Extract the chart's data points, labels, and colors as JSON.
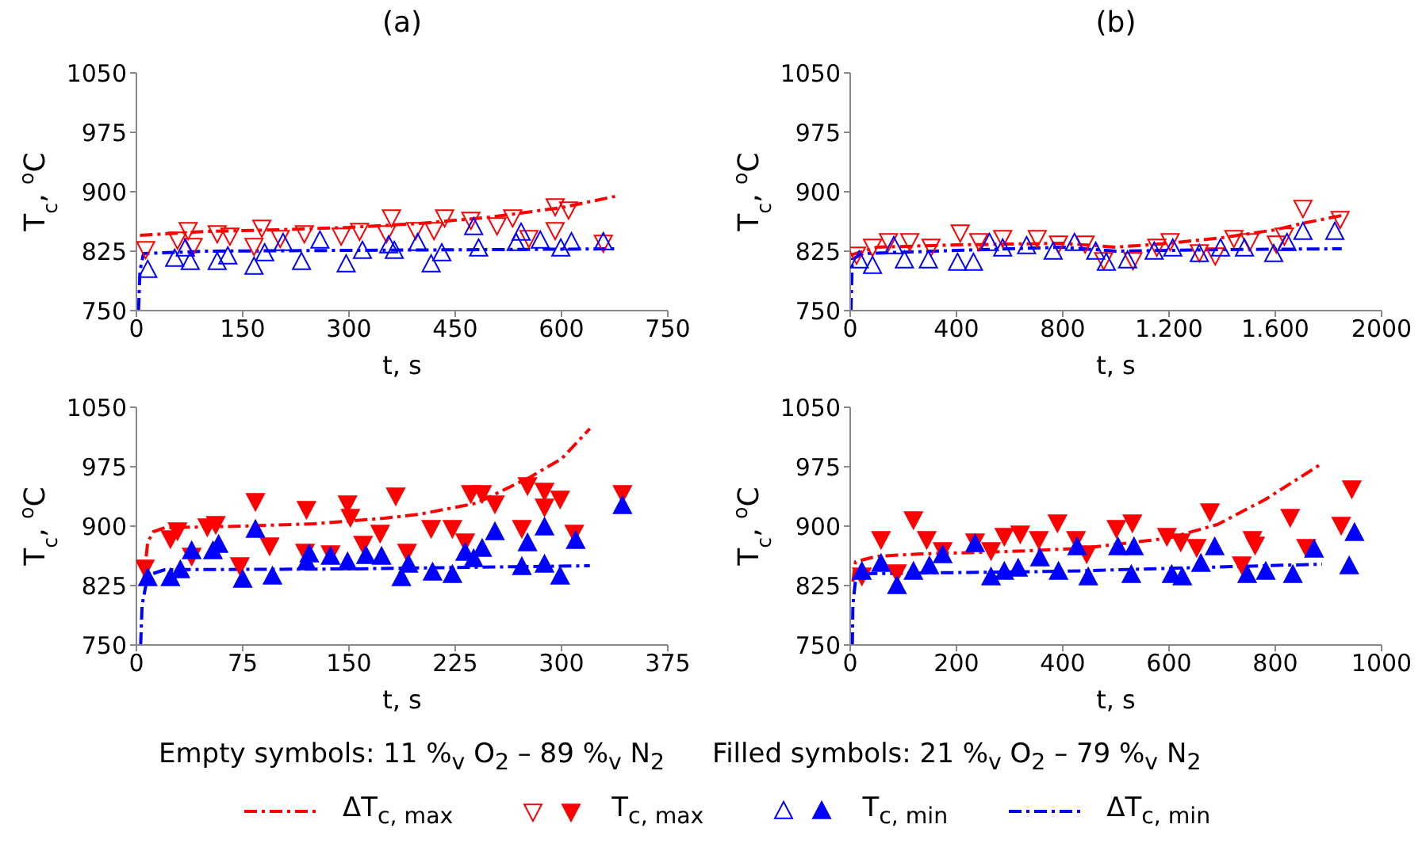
{
  "chart_data": [
    {
      "type": "scatter",
      "title": "(a)",
      "xlabel": "t, s",
      "ylabel": "T$_{c}$, $^{o}$C",
      "xlim": [
        0,
        750
      ],
      "xticks": [
        0,
        150,
        300,
        450,
        600,
        750
      ],
      "ylim": [
        750,
        1050
      ],
      "yticks": [
        750,
        825,
        900,
        975,
        1050
      ],
      "series": [
        {
          "type": "line",
          "line_style": "dashed",
          "color": "#ff0000",
          "x": [
            5,
            100,
            200,
            300,
            400,
            500,
            600,
            680
          ],
          "values": [
            845,
            850,
            852,
            855,
            860,
            868,
            880,
            895
          ]
        },
        {
          "type": "scatter",
          "marker": "triangle",
          "color": "#ff0000",
          "x": [
            13,
            58,
            73,
            80,
            114,
            132,
            166,
            177,
            203,
            237,
            289,
            315,
            353,
            360,
            394,
            420,
            435,
            472,
            509,
            531,
            554,
            591,
            591,
            610,
            659
          ],
          "values": [
            828,
            840,
            852,
            832,
            848,
            845,
            832,
            855,
            842,
            848,
            845,
            851,
            848,
            868,
            852,
            852,
            868,
            865,
            858,
            868,
            842,
            882,
            852,
            878,
            836
          ]
        },
        {
          "type": "scatter",
          "marker": "triangle",
          "color": "#0000ff",
          "x": [
            16,
            54,
            69,
            76,
            114,
            129,
            166,
            181,
            207,
            233,
            259,
            296,
            319,
            356,
            364,
            397,
            416,
            431,
            476,
            483,
            536,
            543,
            570,
            599,
            614,
            659
          ],
          "values": [
            801,
            815,
            828,
            811,
            811,
            818,
            805,
            822,
            835,
            811,
            838,
            808,
            825,
            832,
            825,
            835,
            808,
            822,
            855,
            828,
            835,
            848,
            838,
            828,
            836,
            836
          ]
        },
        {
          "type": "line",
          "line_style": "dashed",
          "color": "#0000ff",
          "x": [
            3,
            5,
            10,
            100,
            300,
            500,
            680
          ],
          "values": [
            750,
            800,
            822,
            825,
            826,
            827,
            828
          ]
        }
      ]
    },
    {
      "type": "scatter",
      "title": "(b)",
      "xlabel": "t, s",
      "ylabel": "T$_{c}$, $^{o}$C",
      "xlim": [
        0,
        2000
      ],
      "xticks": [
        0,
        400,
        800,
        {
          "value": 1200,
          "label": "1.200"
        },
        {
          "value": 1600,
          "label": "1.600"
        },
        2000
      ],
      "ylim": [
        750,
        1050
      ],
      "yticks": [
        750,
        825,
        900,
        975,
        1050
      ],
      "series": [
        {
          "type": "line",
          "line_style": "dashed",
          "color": "#ff0000",
          "x": [
            0,
            100,
            400,
            800,
            1000,
            1200,
            1400,
            1600,
            1700,
            1850
          ],
          "values": [
            820,
            830,
            833,
            835,
            830,
            835,
            842,
            852,
            860,
            870
          ]
        },
        {
          "type": "scatter",
          "marker": "triangle",
          "color": "#ff0000",
          "x": [
            24,
            84,
            144,
            224,
            304,
            414,
            484,
            574,
            704,
            784,
            884,
            954,
            1064,
            1154,
            1204,
            1314,
            1374,
            1444,
            1504,
            1604,
            1634,
            1704,
            1844
          ],
          "values": [
            821,
            831,
            838,
            838,
            831,
            849,
            838,
            842,
            842,
            835,
            835,
            814,
            814,
            831,
            838,
            824,
            820,
            842,
            838,
            835,
            845,
            880,
            866
          ]
        },
        {
          "type": "scatter",
          "marker": "triangle",
          "color": "#0000ff",
          "x": [
            34,
            84,
            164,
            204,
            294,
            404,
            464,
            524,
            574,
            664,
            764,
            844,
            924,
            964,
            1044,
            1144,
            1214,
            1314,
            1394,
            1484,
            1594,
            1644,
            1704,
            1824
          ],
          "values": [
            813,
            806,
            831,
            813,
            813,
            810,
            810,
            835,
            828,
            831,
            824,
            835,
            824,
            810,
            813,
            824,
            828,
            821,
            828,
            828,
            821,
            835,
            849,
            849
          ]
        },
        {
          "type": "line",
          "line_style": "dashed",
          "color": "#0000ff",
          "x": [
            3,
            8,
            50,
            400,
            800,
            1000,
            1400,
            1850
          ],
          "values": [
            750,
            815,
            822,
            826,
            830,
            825,
            827,
            828
          ]
        }
      ]
    },
    {
      "type": "scatter",
      "xlabel": "t, s",
      "ylabel": "T$_{c}$, $^{o}$C",
      "xlim": [
        0,
        375
      ],
      "xticks": [
        0,
        75,
        150,
        225,
        300,
        375
      ],
      "ylim": [
        750,
        1050
      ],
      "yticks": [
        750,
        825,
        900,
        975,
        1050
      ],
      "legend": "bottom",
      "series": [
        {
          "name": "ΔT$_{c, max}$",
          "type": "line",
          "line_style": "dashed",
          "color": "#ff0000",
          "x": [
            5,
            8,
            12,
            20,
            75,
            125,
            175,
            200,
            240,
            278,
            300,
            320
          ],
          "values": [
            830,
            880,
            893,
            898,
            900,
            903,
            910,
            915,
            929,
            962,
            985,
            1023
          ]
        },
        {
          "name": "T$_{c, max}$",
          "type": "scatter",
          "marker": "triangle",
          "color": "#ff0000",
          "x": [
            6,
            24,
            29,
            39,
            50,
            56,
            73,
            84,
            94,
            119,
            120,
            137,
            149,
            151,
            160,
            172,
            183,
            191,
            208,
            223,
            232,
            236,
            244,
            253,
            272,
            276,
            288,
            288,
            299,
            309,
            343
          ],
          "values": [
            848,
            885,
            895,
            863,
            900,
            903,
            851,
            932,
            876,
            868,
            922,
            866,
            929,
            912,
            878,
            892,
            939,
            868,
            898,
            898,
            881,
            942,
            942,
            929,
            898,
            952,
            945,
            925,
            935,
            892,
            942
          ]
        },
        {
          "name": "T$_{c, min}$",
          "type": "scatter",
          "marker": "triangle",
          "color": "#0000ff",
          "x": [
            8,
            24,
            31,
            39,
            54,
            58,
            75,
            84,
            96,
            120,
            122,
            137,
            149,
            162,
            173,
            187,
            192,
            209,
            223,
            232,
            238,
            244,
            253,
            272,
            276,
            288,
            288,
            299,
            310,
            343
          ],
          "values": [
            834,
            834,
            844,
            868,
            868,
            876,
            832,
            895,
            836,
            854,
            864,
            861,
            854,
            862,
            861,
            834,
            851,
            841,
            838,
            866,
            858,
            871,
            892,
            848,
            878,
            898,
            851,
            836,
            881,
            925
          ]
        },
        {
          "name": "ΔT$_{c, min}$",
          "type": "line",
          "line_style": "dashed",
          "color": "#0000ff",
          "x": [
            3,
            4,
            8,
            20,
            150,
            320
          ],
          "values": [
            750,
            800,
            838,
            845,
            846,
            850
          ]
        }
      ]
    },
    {
      "type": "scatter",
      "xlabel": "t, s",
      "ylabel": "T$_{c}$, $^{o}$C",
      "xlim": [
        0,
        1000
      ],
      "xticks": [
        0,
        200,
        400,
        600,
        800,
        1000
      ],
      "ylim": [
        750,
        1050
      ],
      "yticks": [
        750,
        825,
        900,
        975,
        1050
      ],
      "series": [
        {
          "type": "line",
          "line_style": "dashed",
          "color": "#ff0000",
          "x": [
            5,
            10,
            50,
            134,
            300,
            438,
            600,
            691,
            782,
            883
          ],
          "values": [
            830,
            855,
            862,
            865,
            868,
            872,
            885,
            902,
            934,
            977
          ]
        },
        {
          "type": "scatter",
          "marker": "triangle",
          "color": "#ff0000",
          "x": [
            22,
            58,
            88,
            119,
            144,
            174,
            235,
            265,
            290,
            320,
            355,
            390,
            425,
            445,
            501,
            531,
            596,
            622,
            652,
            677,
            737,
            757,
            762,
            828,
            858,
            924,
            944
          ],
          "values": [
            838,
            884,
            842,
            909,
            884,
            870,
            881,
            870,
            888,
            891,
            884,
            905,
            884,
            866,
            898,
            905,
            888,
            881,
            874,
            919,
            852,
            884,
            877,
            912,
            874,
            902,
            948
          ]
        },
        {
          "type": "scatter",
          "marker": "triangle",
          "color": "#0000ff",
          "x": [
            22,
            58,
            88,
            119,
            149,
            174,
            235,
            265,
            290,
            316,
            357,
            392,
            427,
            448,
            504,
            534,
            529,
            605,
            625,
            660,
            686,
            747,
            782,
            833,
            873,
            939,
            949
          ],
          "values": [
            842,
            852,
            824,
            842,
            849,
            863,
            877,
            835,
            842,
            846,
            859,
            842,
            873,
            835,
            873,
            873,
            838,
            838,
            835,
            852,
            873,
            838,
            842,
            838,
            870,
            849,
            891
          ]
        },
        {
          "type": "line",
          "line_style": "dashed",
          "color": "#0000ff",
          "x": [
            4,
            5,
            10,
            30,
            400,
            888
          ],
          "values": [
            750,
            800,
            832,
            840,
            843,
            852
          ]
        }
      ]
    },
    {
      "type": "other",
      "annotations": [
        "Empty symbols: 11 %$_{v}$ O$_{2}$ – 89 %$_{v}$ N$_{2}$",
        "Filled symbols: 21 %$_{v}$ O$_{2}$ – 79 %$_{v}$ N$_{2}$"
      ]
    }
  ]
}
